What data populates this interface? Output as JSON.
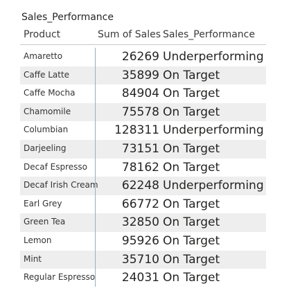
{
  "title": "Sales_Performance",
  "columns": {
    "product": "Product",
    "sales": "Sum of Sales",
    "performance": "Sales_Performance"
  },
  "rows": [
    {
      "product": "Amaretto",
      "sales": "26269",
      "performance": "Underperforming"
    },
    {
      "product": "Caffe Latte",
      "sales": "35899",
      "performance": "On Target"
    },
    {
      "product": "Caffe Mocha",
      "sales": "84904",
      "performance": "On Target"
    },
    {
      "product": "Chamomile",
      "sales": "75578",
      "performance": "On Target"
    },
    {
      "product": "Columbian",
      "sales": "128311",
      "performance": "Underperforming"
    },
    {
      "product": "Darjeeling",
      "sales": "73151",
      "performance": "On Target"
    },
    {
      "product": "Decaf Espresso",
      "sales": "78162",
      "performance": "On Target"
    },
    {
      "product": "Decaf Irish Cream",
      "sales": "62248",
      "performance": "Underperforming"
    },
    {
      "product": "Earl Grey",
      "sales": "66772",
      "performance": "On Target"
    },
    {
      "product": "Green Tea",
      "sales": "32850",
      "performance": "On Target"
    },
    {
      "product": "Lemon",
      "sales": "95926",
      "performance": "On Target"
    },
    {
      "product": "Mint",
      "sales": "35710",
      "performance": "On Target"
    },
    {
      "product": "Regular Espresso",
      "sales": "24031",
      "performance": "On Target"
    }
  ],
  "colors": {
    "row_shade": "#eeeeee",
    "divider": "#7fb3e3",
    "text": "#252423"
  }
}
